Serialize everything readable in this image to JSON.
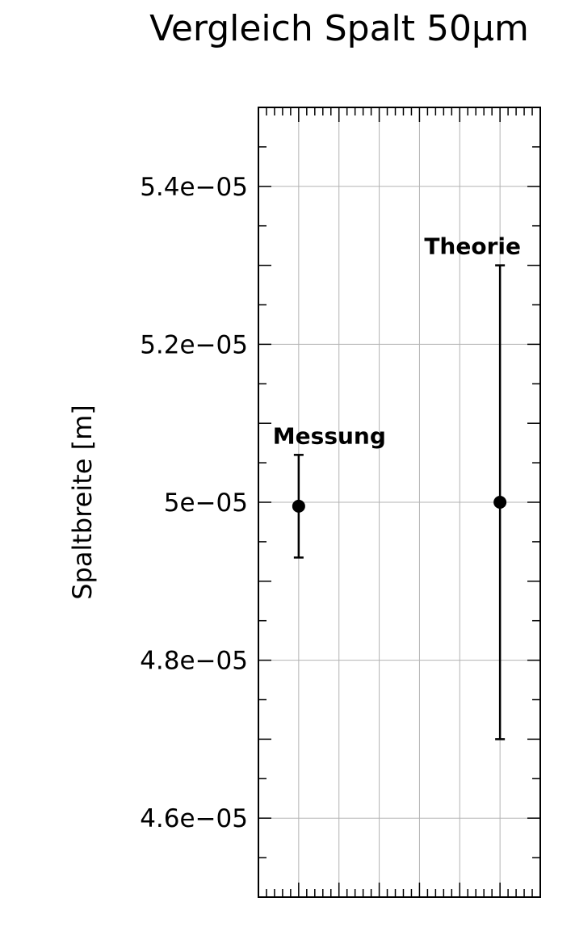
{
  "chart_data": {
    "type": "scatter",
    "title": "Vergleich Spalt 50µm",
    "xlabel": "",
    "ylabel": "Spaltbreite [m]",
    "ylim": [
      4.5e-05,
      5.5e-05
    ],
    "xlim": [
      0,
      7
    ],
    "yticks": [
      4.6e-05,
      4.8e-05,
      5e-05,
      5.2e-05,
      5.4e-05
    ],
    "ytick_labels": [
      "4.6e−05",
      "4.8e−05",
      "5e−05",
      "5.2e−05",
      "5.4e−05"
    ],
    "grid": true,
    "points": [
      {
        "label": "Messung",
        "x": 1,
        "y": 4.995e-05,
        "yerr_low": 4.93e-05,
        "yerr_high": 5.06e-05
      },
      {
        "label": "Theorie",
        "x": 6,
        "y": 5e-05,
        "yerr_low": 4.7e-05,
        "yerr_high": 5.3e-05
      }
    ]
  }
}
